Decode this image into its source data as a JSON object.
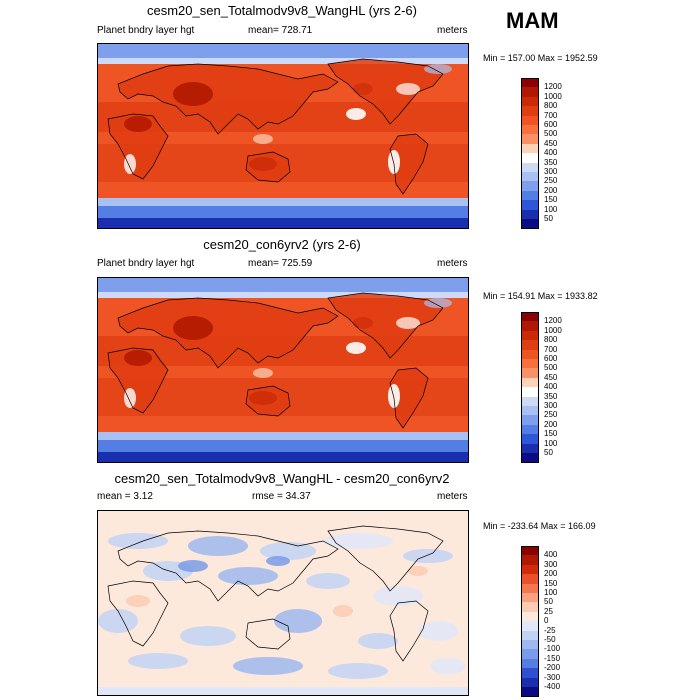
{
  "season": "MAM",
  "panels": [
    {
      "title": "cesm20_sen_Totalmodv9v8_WangHL (yrs 2-6)",
      "left_label": "Planet bndry layer hgt",
      "center_label": "mean= 728.71",
      "right_label": "meters",
      "minmax": "Min = 157.00 Max = 1952.59",
      "colorbar_labels": [
        "1200",
        "1000",
        "800",
        "700",
        "600",
        "500",
        "450",
        "400",
        "350",
        "300",
        "250",
        "200",
        "150",
        "100",
        "50"
      ],
      "colors": [
        "#8b0000",
        "#b01800",
        "#cc2a06",
        "#df3d12",
        "#ee5424",
        "#f6713d",
        "#f99066",
        "#fdd2b8",
        "#ffffff",
        "#cdd9f5",
        "#a9c1f2",
        "#7ea0ec",
        "#557ee4",
        "#2f55d8",
        "#1a2fb0",
        "#0b0c84"
      ]
    },
    {
      "title": "cesm20_con6yrv2 (yrs 2-6)",
      "left_label": "Planet bndry layer hgt",
      "center_label": "mean= 725.59",
      "right_label": "meters",
      "minmax": "Min = 154.91 Max = 1933.82",
      "colorbar_labels": [
        "1200",
        "1000",
        "800",
        "700",
        "600",
        "500",
        "450",
        "400",
        "350",
        "300",
        "250",
        "200",
        "150",
        "100",
        "50"
      ],
      "colors": [
        "#8b0000",
        "#b01800",
        "#cc2a06",
        "#df3d12",
        "#ee5424",
        "#f6713d",
        "#f99066",
        "#fdd2b8",
        "#ffffff",
        "#cdd9f5",
        "#a9c1f2",
        "#7ea0ec",
        "#557ee4",
        "#2f55d8",
        "#1a2fb0",
        "#0b0c84"
      ]
    },
    {
      "title": "cesm20_sen_Totalmodv9v8_WangHL - cesm20_con6yrv2",
      "left_label": "mean =   3.12",
      "center_label": "rmse =  34.37",
      "right_label": "meters",
      "minmax": "Min = -233.64 Max = 166.09",
      "colorbar_labels": [
        "400",
        "300",
        "200",
        "150",
        "100",
        "50",
        "25",
        "0",
        "-25",
        "-50",
        "-100",
        "-150",
        "-200",
        "-300",
        "-400"
      ],
      "colors": [
        "#8b0000",
        "#b01800",
        "#d02c0c",
        "#e8512a",
        "#f4784f",
        "#f9a27f",
        "#fccbb3",
        "#fde8dc",
        "#e0e8f8",
        "#c2d2f4",
        "#9fb8ef",
        "#7a9be9",
        "#557ee4",
        "#3050d0",
        "#1a2fb0",
        "#0b0c84"
      ]
    }
  ]
}
